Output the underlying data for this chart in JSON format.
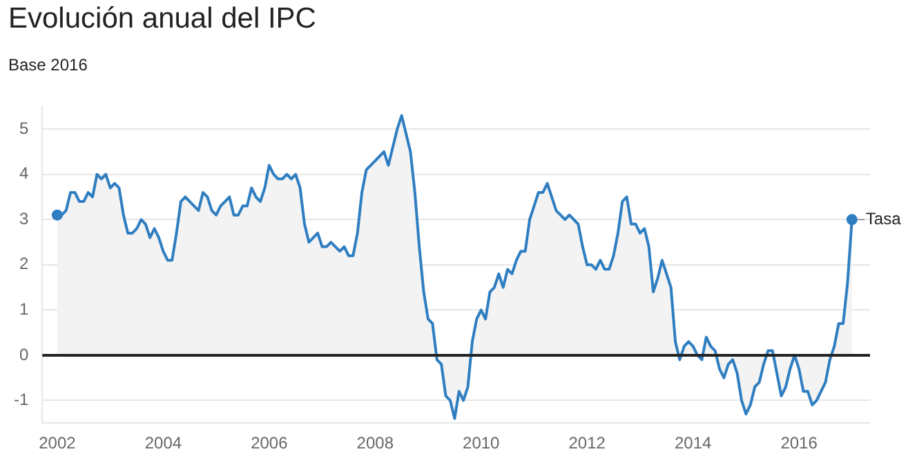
{
  "chart_data": {
    "type": "area",
    "title": "Evolución anual del IPC",
    "subtitle": "Base 2016",
    "x": [
      "2002-01",
      "2002-02",
      "2002-03",
      "2002-04",
      "2002-05",
      "2002-06",
      "2002-07",
      "2002-08",
      "2002-09",
      "2002-10",
      "2002-11",
      "2002-12",
      "2003-01",
      "2003-02",
      "2003-03",
      "2003-04",
      "2003-05",
      "2003-06",
      "2003-07",
      "2003-08",
      "2003-09",
      "2003-10",
      "2003-11",
      "2003-12",
      "2004-01",
      "2004-02",
      "2004-03",
      "2004-04",
      "2004-05",
      "2004-06",
      "2004-07",
      "2004-08",
      "2004-09",
      "2004-10",
      "2004-11",
      "2004-12",
      "2005-01",
      "2005-02",
      "2005-03",
      "2005-04",
      "2005-05",
      "2005-06",
      "2005-07",
      "2005-08",
      "2005-09",
      "2005-10",
      "2005-11",
      "2005-12",
      "2006-01",
      "2006-02",
      "2006-03",
      "2006-04",
      "2006-05",
      "2006-06",
      "2006-07",
      "2006-08",
      "2006-09",
      "2006-10",
      "2006-11",
      "2006-12",
      "2007-01",
      "2007-02",
      "2007-03",
      "2007-04",
      "2007-05",
      "2007-06",
      "2007-07",
      "2007-08",
      "2007-09",
      "2007-10",
      "2007-11",
      "2007-12",
      "2008-01",
      "2008-02",
      "2008-03",
      "2008-04",
      "2008-05",
      "2008-06",
      "2008-07",
      "2008-08",
      "2008-09",
      "2008-10",
      "2008-11",
      "2008-12",
      "2009-01",
      "2009-02",
      "2009-03",
      "2009-04",
      "2009-05",
      "2009-06",
      "2009-07",
      "2009-08",
      "2009-09",
      "2009-10",
      "2009-11",
      "2009-12",
      "2010-01",
      "2010-02",
      "2010-03",
      "2010-04",
      "2010-05",
      "2010-06",
      "2010-07",
      "2010-08",
      "2010-09",
      "2010-10",
      "2010-11",
      "2010-12",
      "2011-01",
      "2011-02",
      "2011-03",
      "2011-04",
      "2011-05",
      "2011-06",
      "2011-07",
      "2011-08",
      "2011-09",
      "2011-10",
      "2011-11",
      "2011-12",
      "2012-01",
      "2012-02",
      "2012-03",
      "2012-04",
      "2012-05",
      "2012-06",
      "2012-07",
      "2012-08",
      "2012-09",
      "2012-10",
      "2012-11",
      "2012-12",
      "2013-01",
      "2013-02",
      "2013-03",
      "2013-04",
      "2013-05",
      "2013-06",
      "2013-07",
      "2013-08",
      "2013-09",
      "2013-10",
      "2013-11",
      "2013-12",
      "2014-01",
      "2014-02",
      "2014-03",
      "2014-04",
      "2014-05",
      "2014-06",
      "2014-07",
      "2014-08",
      "2014-09",
      "2014-10",
      "2014-11",
      "2014-12",
      "2015-01",
      "2015-02",
      "2015-03",
      "2015-04",
      "2015-05",
      "2015-06",
      "2015-07",
      "2015-08",
      "2015-09",
      "2015-10",
      "2015-11",
      "2015-12",
      "2016-01",
      "2016-02",
      "2016-03",
      "2016-04",
      "2016-05",
      "2016-06",
      "2016-07",
      "2016-08",
      "2016-09",
      "2016-10",
      "2016-11",
      "2016-12",
      "2017-01"
    ],
    "series": [
      {
        "name": "Tasa",
        "color": "#2f7ec1",
        "values": [
          3.1,
          3.1,
          3.2,
          3.6,
          3.6,
          3.4,
          3.4,
          3.6,
          3.5,
          4.0,
          3.9,
          4.0,
          3.7,
          3.8,
          3.7,
          3.1,
          2.7,
          2.7,
          2.8,
          3.0,
          2.9,
          2.6,
          2.8,
          2.6,
          2.3,
          2.1,
          2.1,
          2.7,
          3.4,
          3.5,
          3.4,
          3.3,
          3.2,
          3.6,
          3.5,
          3.2,
          3.1,
          3.3,
          3.4,
          3.5,
          3.1,
          3.1,
          3.3,
          3.3,
          3.7,
          3.5,
          3.4,
          3.7,
          4.2,
          4.0,
          3.9,
          3.9,
          4.0,
          3.9,
          4.0,
          3.7,
          2.9,
          2.5,
          2.6,
          2.7,
          2.4,
          2.4,
          2.5,
          2.4,
          2.3,
          2.4,
          2.2,
          2.2,
          2.7,
          3.6,
          4.1,
          4.2,
          4.3,
          4.4,
          4.5,
          4.2,
          4.6,
          5.0,
          5.3,
          4.9,
          4.5,
          3.6,
          2.4,
          1.4,
          0.8,
          0.7,
          -0.1,
          -0.2,
          -0.9,
          -1.0,
          -1.4,
          -0.8,
          -1.0,
          -0.7,
          0.3,
          0.8,
          1.0,
          0.8,
          1.4,
          1.5,
          1.8,
          1.5,
          1.9,
          1.8,
          2.1,
          2.3,
          2.3,
          3.0,
          3.3,
          3.6,
          3.6,
          3.8,
          3.5,
          3.2,
          3.1,
          3.0,
          3.1,
          3.0,
          2.9,
          2.4,
          2.0,
          2.0,
          1.9,
          2.1,
          1.9,
          1.9,
          2.2,
          2.7,
          3.4,
          3.5,
          2.9,
          2.9,
          2.7,
          2.8,
          2.4,
          1.4,
          1.7,
          2.1,
          1.8,
          1.5,
          0.3,
          -0.1,
          0.2,
          0.3,
          0.2,
          0.0,
          -0.1,
          0.4,
          0.2,
          0.1,
          -0.3,
          -0.5,
          -0.2,
          -0.1,
          -0.4,
          -1.0,
          -1.3,
          -1.1,
          -0.7,
          -0.6,
          -0.2,
          0.1,
          0.1,
          -0.4,
          -0.9,
          -0.7,
          -0.3,
          0.0,
          -0.3,
          -0.8,
          -0.8,
          -1.1,
          -1.0,
          -0.8,
          -0.6,
          -0.1,
          0.2,
          0.7,
          0.7,
          1.6,
          3.0
        ]
      }
    ],
    "xlim": [
      "2001-09-20",
      "2017-05-04"
    ],
    "xticks": [
      {
        "value": "2002",
        "label": "2002"
      },
      {
        "value": "2004",
        "label": "2004"
      },
      {
        "value": "2006",
        "label": "2006"
      },
      {
        "value": "2008",
        "label": "2008"
      },
      {
        "value": "2010",
        "label": "2010"
      },
      {
        "value": "2012",
        "label": "2012"
      },
      {
        "value": "2014",
        "label": "2014"
      },
      {
        "value": "2016",
        "label": "2016"
      }
    ],
    "ylim": [
      -1.5,
      5.5
    ],
    "yticks": [
      -1,
      0,
      1,
      2,
      3,
      4,
      5
    ],
    "grid": "y",
    "legend": "right",
    "marker": "none",
    "line_style": "solid",
    "ref_lines": [
      {
        "axis": "y",
        "value": 0,
        "color": "#222222"
      }
    ]
  }
}
